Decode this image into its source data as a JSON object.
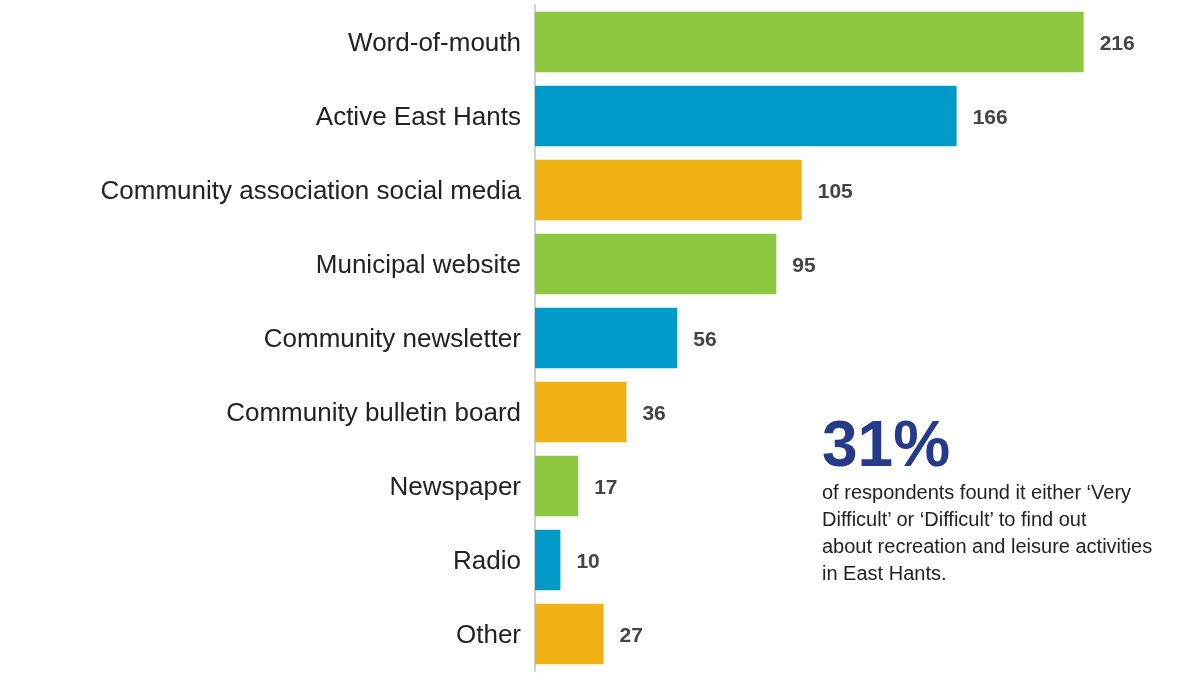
{
  "chart_data": {
    "type": "bar",
    "orientation": "horizontal",
    "categories": [
      "Word-of-mouth",
      "Active East Hants",
      "Community association social media",
      "Municipal website",
      "Community newsletter",
      "Community bulletin board",
      "Newspaper",
      "Radio",
      "Other"
    ],
    "values": [
      216,
      166,
      105,
      95,
      56,
      36,
      17,
      10,
      27
    ],
    "colors": [
      "#8dc63f",
      "#009ac8",
      "#efb114",
      "#8dc63f",
      "#009ac8",
      "#efb114",
      "#8dc63f",
      "#009ac8",
      "#efb114"
    ],
    "data_labels": true,
    "annotations": [
      "31%",
      "of respondents found it either ‘Very Difficult’ or ‘Difficult’ to find out about recreation and leisure activities in East Hants."
    ]
  }
}
